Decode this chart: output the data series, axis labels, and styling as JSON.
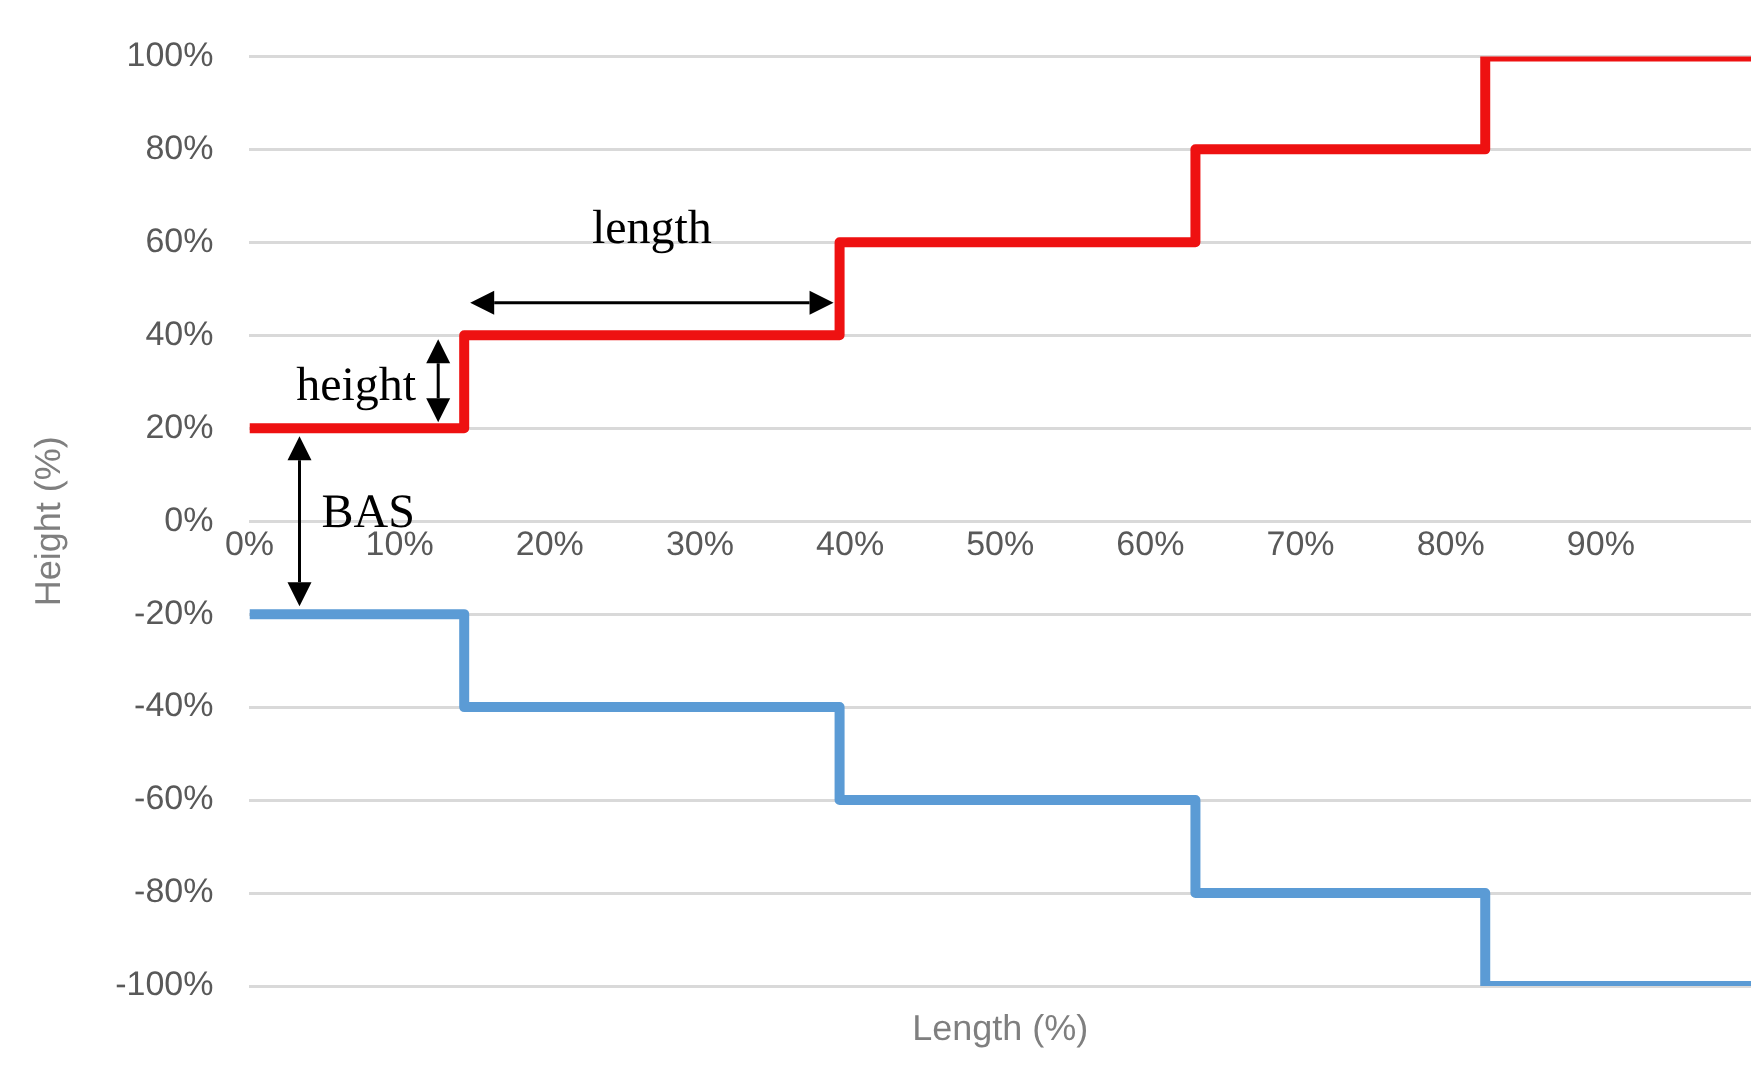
{
  "chart_data": {
    "type": "step",
    "xlabel": "Length (%)",
    "ylabel": "Height (%)",
    "xlim": [
      0,
      100
    ],
    "ylim": [
      -100,
      100
    ],
    "xticks": [
      {
        "value": 0,
        "label": "0%"
      },
      {
        "value": 10,
        "label": "10%"
      },
      {
        "value": 20,
        "label": "20%"
      },
      {
        "value": 30,
        "label": "30%"
      },
      {
        "value": 40,
        "label": "40%"
      },
      {
        "value": 50,
        "label": "50%"
      },
      {
        "value": 60,
        "label": "60%"
      },
      {
        "value": 70,
        "label": "70%"
      },
      {
        "value": 80,
        "label": "80%"
      },
      {
        "value": 90,
        "label": "90%"
      }
    ],
    "yticks": [
      {
        "value": -100,
        "label": "-100%"
      },
      {
        "value": -80,
        "label": "-80%"
      },
      {
        "value": -60,
        "label": "-60%"
      },
      {
        "value": -40,
        "label": "-40%"
      },
      {
        "value": -20,
        "label": "-20%"
      },
      {
        "value": 0,
        "label": "0%"
      },
      {
        "value": 20,
        "label": "20%"
      },
      {
        "value": 40,
        "label": "40%"
      },
      {
        "value": 60,
        "label": "60%"
      },
      {
        "value": 80,
        "label": "80%"
      },
      {
        "value": 100,
        "label": "100%"
      }
    ],
    "grid": "y",
    "legend": false,
    "series": [
      {
        "color": "#ee1111",
        "x": [
          0,
          14.3,
          39.3,
          63,
          82.3,
          100
        ],
        "values": [
          20,
          40,
          60,
          80,
          100,
          100
        ]
      },
      {
        "color": "#5b9bd5",
        "x": [
          0,
          14.3,
          39.3,
          63,
          82.3,
          100
        ],
        "values": [
          -20,
          -40,
          -60,
          -80,
          -100,
          -100
        ]
      }
    ],
    "annotations": [
      "length",
      "height",
      "BAS"
    ]
  }
}
